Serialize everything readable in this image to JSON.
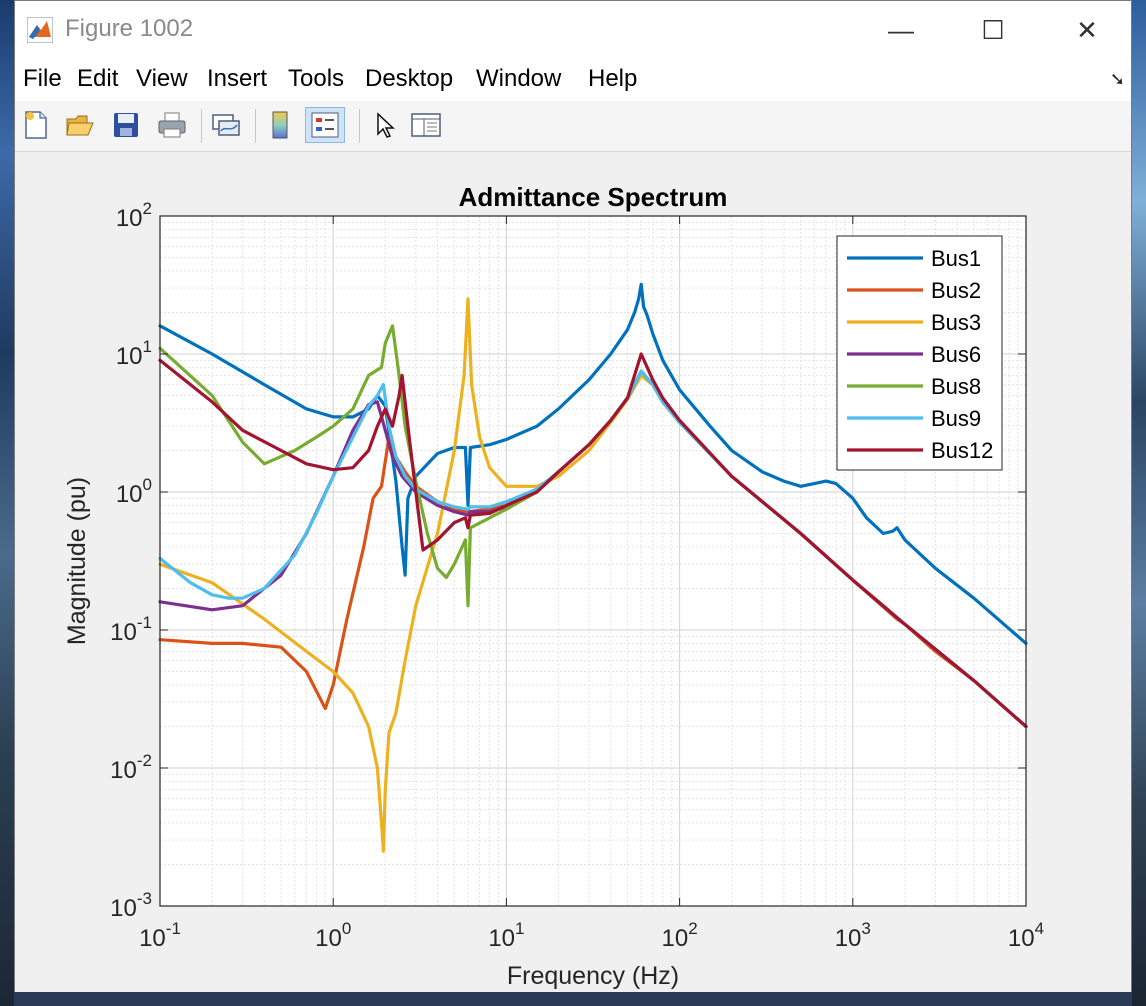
{
  "window": {
    "title": "Figure 1002"
  },
  "window_buttons": {
    "minimize": "—",
    "maximize": "☐",
    "close": "✕"
  },
  "menu": [
    "File",
    "Edit",
    "View",
    "Insert",
    "Tools",
    "Desktop",
    "Window",
    "Help"
  ],
  "toolbar": {
    "buttons": [
      "new-figure-icon",
      "open-file-icon",
      "save-icon",
      "print-icon",
      "link-plot-icon",
      "colorbar-icon",
      "legend-icon",
      "pointer-icon",
      "property-inspector-icon"
    ],
    "active": "legend-icon"
  },
  "colors": {
    "Bus1": "#0072BD",
    "Bus2": "#D95319",
    "Bus3": "#EDB120",
    "Bus6": "#7E2F8E",
    "Bus8": "#77AC30",
    "Bus9": "#4DBEEE",
    "Bus12": "#A2142F"
  },
  "chart_data": {
    "type": "line",
    "title": "Admittance Spectrum",
    "xlabel": "Frequency (Hz)",
    "ylabel": "Magnitude (pu)",
    "xscale": "log",
    "yscale": "log",
    "xlim": [
      0.1,
      10000
    ],
    "ylim": [
      0.001,
      100
    ],
    "xticks": [
      {
        "base": "10",
        "exp": "-1"
      },
      {
        "base": "10",
        "exp": "0"
      },
      {
        "base": "10",
        "exp": "1"
      },
      {
        "base": "10",
        "exp": "2"
      },
      {
        "base": "10",
        "exp": "3"
      },
      {
        "base": "10",
        "exp": "4"
      }
    ],
    "yticks": [
      {
        "base": "10",
        "exp": "-3"
      },
      {
        "base": "10",
        "exp": "-2"
      },
      {
        "base": "10",
        "exp": "-1"
      },
      {
        "base": "10",
        "exp": "0"
      },
      {
        "base": "10",
        "exp": "1"
      },
      {
        "base": "10",
        "exp": "2"
      }
    ],
    "grid": true,
    "legend_position": "top-right",
    "series": [
      {
        "name": "Bus1",
        "x": [
          0.1,
          0.2,
          0.4,
          0.7,
          1.0,
          1.3,
          1.6,
          1.8,
          2.0,
          2.3,
          2.5,
          2.6,
          2.7,
          3,
          4,
          5,
          5.8,
          6.0,
          6.2,
          8,
          10,
          15,
          20,
          30,
          40,
          50,
          55,
          58,
          60,
          62,
          65,
          70,
          80,
          100,
          150,
          200,
          300,
          400,
          500,
          600,
          700,
          800,
          1000,
          1200,
          1500,
          1700,
          1800,
          2000,
          3000,
          5000,
          10000
        ],
        "y": [
          16,
          10,
          6,
          4,
          3.5,
          3.5,
          4,
          5,
          4.2,
          1.2,
          0.4,
          0.25,
          0.9,
          1.3,
          1.9,
          2.1,
          2.1,
          0.8,
          2.1,
          2.2,
          2.4,
          3,
          4,
          6.5,
          10,
          15,
          20,
          25,
          32,
          22,
          19,
          14,
          9,
          5.5,
          3,
          2,
          1.4,
          1.2,
          1.1,
          1.15,
          1.2,
          1.15,
          0.9,
          0.65,
          0.5,
          0.52,
          0.55,
          0.45,
          0.28,
          0.17,
          0.08
        ]
      },
      {
        "name": "Bus2",
        "x": [
          0.1,
          0.2,
          0.3,
          0.5,
          0.7,
          0.9,
          1.0,
          1.2,
          1.5,
          1.7,
          1.9,
          2.1,
          2.3,
          2.6,
          3,
          4,
          5,
          6,
          8,
          10,
          15,
          20,
          30,
          40,
          50,
          60,
          70,
          80,
          100,
          200,
          500,
          1000,
          1800,
          2000,
          3000,
          5000,
          10000
        ],
        "y": [
          0.085,
          0.08,
          0.08,
          0.075,
          0.05,
          0.027,
          0.04,
          0.12,
          0.4,
          0.9,
          1.1,
          2.5,
          1.8,
          1.4,
          1.1,
          0.85,
          0.75,
          0.72,
          0.75,
          0.8,
          1.05,
          1.4,
          2.2,
          3.3,
          4.8,
          7,
          6,
          4.5,
          3.2,
          1.3,
          0.5,
          0.23,
          0.12,
          0.11,
          0.07,
          0.043,
          0.02
        ]
      },
      {
        "name": "Bus3",
        "x": [
          0.1,
          0.2,
          0.4,
          0.7,
          1.0,
          1.3,
          1.6,
          1.8,
          1.9,
          1.95,
          2.0,
          2.1,
          2.3,
          2.6,
          3,
          4,
          5,
          5.7,
          6.0,
          6.3,
          7,
          8,
          10,
          15,
          20,
          30,
          40,
          50,
          60,
          70,
          80,
          100,
          200,
          500,
          1000,
          2000,
          5000,
          10000
        ],
        "y": [
          0.3,
          0.22,
          0.12,
          0.07,
          0.05,
          0.035,
          0.02,
          0.01,
          0.004,
          0.0025,
          0.007,
          0.018,
          0.025,
          0.06,
          0.15,
          0.5,
          2,
          7,
          25,
          6,
          2.5,
          1.5,
          1.1,
          1.1,
          1.3,
          2.0,
          3.2,
          4.7,
          7,
          6,
          4.5,
          3.2,
          1.3,
          0.5,
          0.23,
          0.11,
          0.043,
          0.02
        ]
      },
      {
        "name": "Bus6",
        "x": [
          0.1,
          0.2,
          0.3,
          0.5,
          0.7,
          1.0,
          1.3,
          1.6,
          1.8,
          2.0,
          2.2,
          2.5,
          3,
          4,
          5,
          6,
          6.2,
          8,
          10,
          15,
          20,
          30,
          40,
          50,
          60,
          70,
          80,
          100,
          200,
          500,
          1000,
          2000,
          5000,
          10000
        ],
        "y": [
          0.16,
          0.14,
          0.15,
          0.25,
          0.5,
          1.3,
          2.8,
          4.3,
          4.5,
          2.8,
          1.8,
          1.3,
          1.0,
          0.8,
          0.72,
          0.68,
          0.72,
          0.72,
          0.78,
          1.0,
          1.4,
          2.2,
          3.3,
          4.8,
          7.5,
          6,
          4.5,
          3.2,
          1.3,
          0.5,
          0.23,
          0.11,
          0.043,
          0.02
        ]
      },
      {
        "name": "Bus8",
        "x": [
          0.1,
          0.2,
          0.3,
          0.4,
          0.6,
          0.8,
          1.0,
          1.3,
          1.6,
          1.9,
          2.0,
          2.2,
          2.4,
          2.6,
          3,
          3.5,
          4,
          4.5,
          5,
          5.8,
          6.0,
          6.2,
          8,
          10,
          15,
          20,
          30,
          40,
          50,
          60,
          70,
          80,
          100,
          200,
          500,
          1000,
          2000,
          5000,
          10000
        ],
        "y": [
          11,
          5,
          2.3,
          1.6,
          2.0,
          2.5,
          3.0,
          4.0,
          7.0,
          8,
          12,
          16,
          7,
          3,
          1.2,
          0.5,
          0.28,
          0.24,
          0.3,
          0.45,
          0.15,
          0.55,
          0.65,
          0.75,
          1.0,
          1.4,
          2.2,
          3.3,
          4.8,
          7.5,
          6,
          4.5,
          3.2,
          1.3,
          0.5,
          0.23,
          0.11,
          0.043,
          0.02
        ]
      },
      {
        "name": "Bus9",
        "x": [
          0.1,
          0.15,
          0.2,
          0.25,
          0.3,
          0.4,
          0.6,
          0.8,
          1.0,
          1.3,
          1.6,
          1.8,
          1.95,
          2.1,
          2.3,
          2.6,
          3,
          4,
          5,
          6,
          6.2,
          8,
          10,
          15,
          20,
          30,
          40,
          50,
          60,
          70,
          80,
          100,
          200,
          500,
          1000,
          2000,
          5000,
          10000
        ],
        "y": [
          0.33,
          0.22,
          0.18,
          0.17,
          0.17,
          0.2,
          0.35,
          0.7,
          1.3,
          2.5,
          4.2,
          5.0,
          6.0,
          3,
          1.8,
          1.3,
          1.05,
          0.85,
          0.78,
          0.75,
          0.78,
          0.78,
          0.85,
          1.05,
          1.4,
          2.2,
          3.3,
          4.8,
          7.5,
          6,
          4.5,
          3.2,
          1.3,
          0.5,
          0.23,
          0.11,
          0.043,
          0.02
        ]
      },
      {
        "name": "Bus12",
        "x": [
          0.1,
          0.2,
          0.3,
          0.5,
          0.7,
          1.0,
          1.3,
          1.6,
          1.8,
          2.0,
          2.2,
          2.4,
          2.5,
          2.7,
          3.0,
          3.3,
          4,
          5,
          5.8,
          6.0,
          6.2,
          8,
          10,
          15,
          20,
          30,
          40,
          50,
          60,
          70,
          80,
          100,
          200,
          500,
          1000,
          2000,
          5000,
          10000
        ],
        "y": [
          9,
          4.5,
          2.8,
          2.0,
          1.6,
          1.45,
          1.5,
          2.0,
          3.0,
          4.0,
          3.0,
          5.0,
          7,
          3,
          1.0,
          0.38,
          0.45,
          0.6,
          0.65,
          0.55,
          0.68,
          0.7,
          0.8,
          1.0,
          1.4,
          2.2,
          3.3,
          4.8,
          10,
          6.5,
          4.8,
          3.3,
          1.3,
          0.5,
          0.23,
          0.11,
          0.043,
          0.02
        ]
      }
    ]
  }
}
